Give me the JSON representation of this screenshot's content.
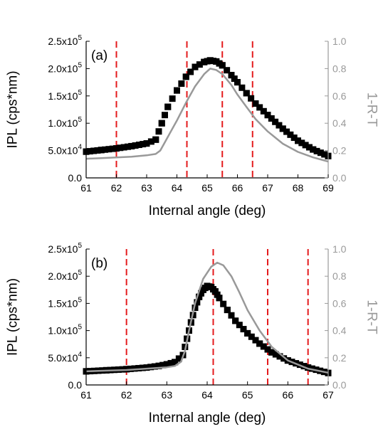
{
  "colors": {
    "ipl": "#000000",
    "model": "#999999",
    "marker": "#e41a1c",
    "right_axis": "#999999"
  },
  "chart_data": [
    {
      "type": "scatter",
      "panel_label": "(a)",
      "xlabel": "Internal angle (deg)",
      "ylabel": "IPL (cps*nm)",
      "ylabel_right": "1-R-T",
      "xlim": [
        61,
        69
      ],
      "ylim": [
        0,
        250000
      ],
      "ylim_right": [
        0,
        1.0
      ],
      "x_ticks": [
        61,
        62,
        63,
        64,
        65,
        66,
        67,
        68,
        69
      ],
      "y_ticks": [
        {
          "mant": "0.0",
          "exp": ""
        },
        {
          "mant": "5.0x10",
          "exp": "4"
        },
        {
          "mant": "1.0x10",
          "exp": "5"
        },
        {
          "mant": "1.5x10",
          "exp": "5"
        },
        {
          "mant": "2.0x10",
          "exp": "5"
        },
        {
          "mant": "2.5x10",
          "exp": "5"
        }
      ],
      "y_right_ticks": [
        "0.0",
        "0.2",
        "0.4",
        "0.6",
        "0.8",
        "1.0"
      ],
      "vlines": [
        62.0,
        64.33,
        65.5,
        66.5
      ],
      "series": [
        {
          "kind": "markers",
          "axis": "left",
          "x": [
            61.0,
            61.5,
            62.0,
            62.5,
            63.0,
            63.3,
            63.5,
            63.7,
            64.0,
            64.3,
            64.6,
            64.9,
            65.1,
            65.3,
            65.5,
            65.8,
            66.0,
            66.3,
            66.6,
            67.0,
            67.5,
            68.0,
            68.5,
            69.0
          ],
          "y": [
            48000,
            51000,
            54000,
            58000,
            63000,
            70000,
            100000,
            130000,
            160000,
            185000,
            203000,
            212000,
            215000,
            213000,
            206000,
            188000,
            175000,
            155000,
            136000,
            115000,
            90000,
            68000,
            52000,
            40000
          ]
        },
        {
          "kind": "line",
          "axis": "right",
          "x": [
            61.0,
            61.5,
            62.0,
            62.5,
            63.0,
            63.3,
            63.45,
            63.6,
            63.8,
            64.0,
            64.3,
            64.6,
            64.9,
            65.1,
            65.3,
            65.5,
            65.8,
            66.0,
            66.3,
            66.6,
            67.0,
            67.5,
            68.0,
            68.5,
            69.0
          ],
          "y": [
            0.14,
            0.145,
            0.15,
            0.155,
            0.165,
            0.175,
            0.2,
            0.26,
            0.34,
            0.42,
            0.55,
            0.67,
            0.76,
            0.8,
            0.79,
            0.76,
            0.68,
            0.61,
            0.52,
            0.43,
            0.34,
            0.25,
            0.19,
            0.15,
            0.12
          ]
        }
      ]
    },
    {
      "type": "scatter",
      "panel_label": "(b)",
      "xlabel": "Internal angle (deg)",
      "ylabel": "IPL (cps*nm)",
      "ylabel_right": "1-R-T",
      "xlim": [
        61,
        67
      ],
      "ylim": [
        0,
        250000
      ],
      "ylim_right": [
        0,
        1.0
      ],
      "x_ticks": [
        61,
        62,
        63,
        64,
        65,
        66,
        67
      ],
      "y_ticks": [
        {
          "mant": "0.0",
          "exp": ""
        },
        {
          "mant": "5.0x10",
          "exp": "4"
        },
        {
          "mant": "1.0x10",
          "exp": "5"
        },
        {
          "mant": "1.5x10",
          "exp": "5"
        },
        {
          "mant": "2.0x10",
          "exp": "5"
        },
        {
          "mant": "2.5x10",
          "exp": "5"
        }
      ],
      "y_right_ticks": [
        "0.0",
        "0.2",
        "0.4",
        "0.6",
        "0.8",
        "1.0"
      ],
      "vlines": [
        62.0,
        64.15,
        65.5,
        66.5
      ],
      "series": [
        {
          "kind": "markers",
          "axis": "left",
          "x": [
            61.0,
            61.5,
            62.0,
            62.5,
            62.8,
            63.0,
            63.2,
            63.4,
            63.5,
            63.6,
            63.7,
            63.8,
            63.9,
            64.0,
            64.1,
            64.2,
            64.3,
            64.5,
            64.7,
            65.0,
            65.3,
            65.6,
            66.0,
            66.5,
            67.0
          ],
          "y": [
            25000,
            27000,
            29000,
            32000,
            35000,
            38000,
            42000,
            55000,
            85000,
            115000,
            142000,
            162000,
            175000,
            182000,
            180000,
            172000,
            160000,
            138000,
            118000,
            95000,
            76000,
            60000,
            45000,
            32000,
            22000
          ]
        },
        {
          "kind": "line",
          "axis": "right",
          "x": [
            61.0,
            61.5,
            62.0,
            62.5,
            63.0,
            63.2,
            63.35,
            63.45,
            63.55,
            63.7,
            63.9,
            64.1,
            64.25,
            64.4,
            64.6,
            64.8,
            65.0,
            65.3,
            65.6,
            66.0,
            66.5,
            67.0
          ],
          "y": [
            0.1,
            0.105,
            0.11,
            0.12,
            0.13,
            0.14,
            0.17,
            0.25,
            0.4,
            0.6,
            0.78,
            0.87,
            0.9,
            0.88,
            0.8,
            0.68,
            0.55,
            0.4,
            0.28,
            0.18,
            0.12,
            0.09
          ]
        }
      ]
    }
  ]
}
